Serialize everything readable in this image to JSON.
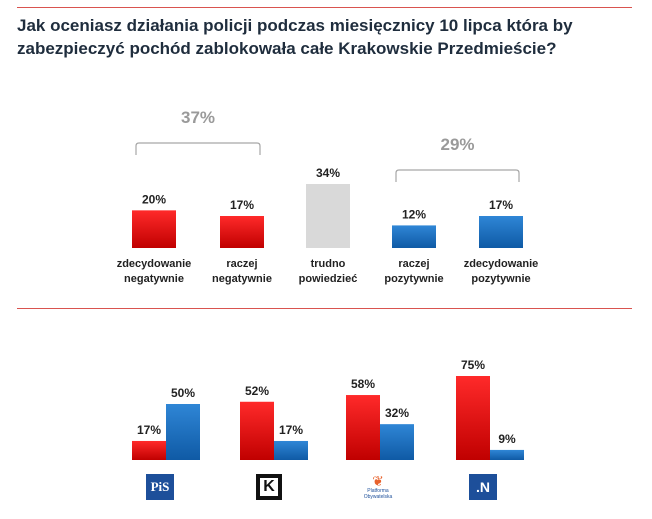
{
  "title_line1": "Jak oceniasz działania policji podczas miesięcznicy 10 lipca która by",
  "title_line2": "zabezpieczyć pochód zablokowała całe Krakowskie Przedmieście?",
  "colors": {
    "red": "#e8121a",
    "blue": "#1a6fc0",
    "grey": "#d9d9d9",
    "bracket": "#a6a6a6"
  },
  "chart_data": [
    {
      "type": "bar",
      "title": "Jak oceniasz działania policji podczas miesięcznicy 10 lipca która by zabezpieczyć pochód zablokowała całe Krakowskie Przedmieście?",
      "categories": [
        [
          "zdecydowanie",
          "negatywnie"
        ],
        [
          "raczej",
          "negatywnie"
        ],
        [
          "trudno",
          "powiedzieć"
        ],
        [
          "raczej",
          "pozytywnie"
        ],
        [
          "zdecydowanie",
          "pozytywnie"
        ]
      ],
      "values": [
        20,
        17,
        34,
        12,
        17
      ],
      "value_labels": [
        "20%",
        "17%",
        "34%",
        "12%",
        "17%"
      ],
      "bar_colors": [
        "red",
        "red",
        "grey",
        "blue",
        "blue"
      ],
      "groups": [
        {
          "label": "37%",
          "from": 0,
          "to": 1,
          "value": 37
        },
        {
          "label": "29%",
          "from": 3,
          "to": 4,
          "value": 29
        }
      ],
      "ylim": [
        0,
        34
      ]
    },
    {
      "type": "bar",
      "categories": [
        "PiS",
        "Kukiz'15",
        "Platforma Obywatelska",
        "Nowoczesna"
      ],
      "series": [
        {
          "name": "negatywnie",
          "color": "red",
          "values": [
            17,
            52,
            58,
            75
          ],
          "labels": [
            "17%",
            "52%",
            "58%",
            "75%"
          ]
        },
        {
          "name": "pozytywnie",
          "color": "blue",
          "values": [
            50,
            17,
            32,
            9
          ],
          "labels": [
            "50%",
            "17%",
            "32%",
            "9%"
          ]
        }
      ],
      "ylim": [
        0,
        75
      ]
    }
  ],
  "logos": {
    "pis": "PiS",
    "kukiz": "K",
    "po_mark": "❦",
    "po_text": "Platforma Obywatelska",
    "nowoczesna": ".N"
  }
}
